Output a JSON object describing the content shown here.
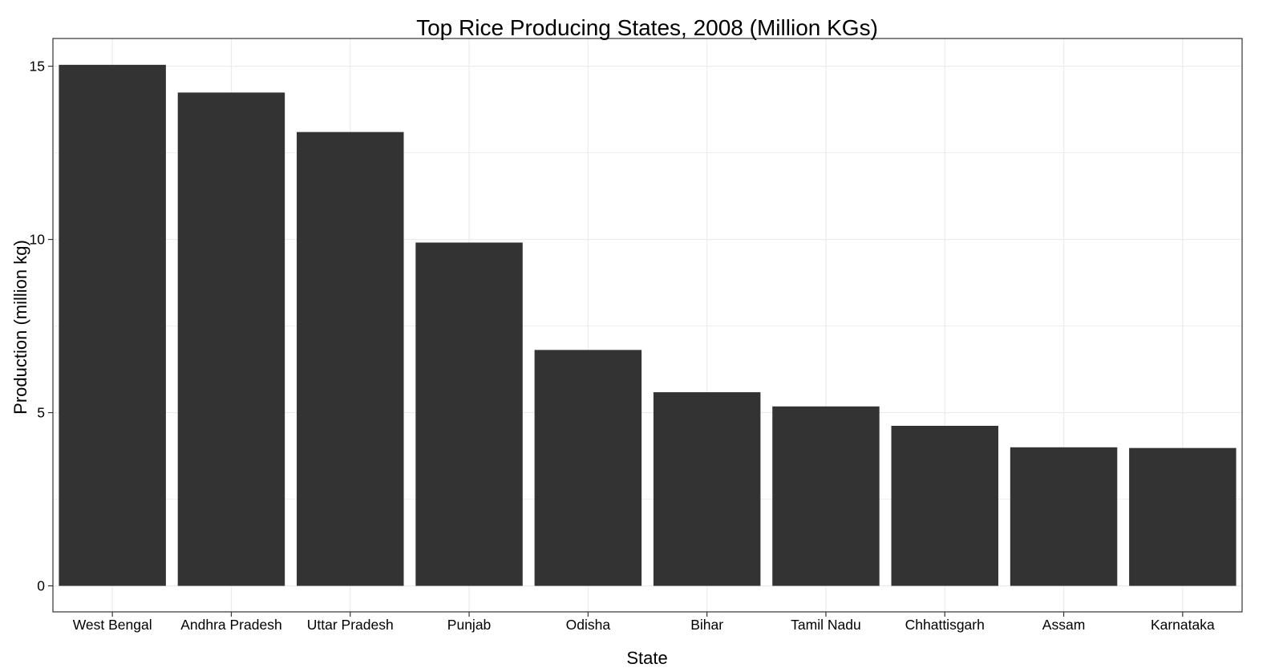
{
  "chart_data": {
    "type": "bar",
    "title": "Top Rice Producing States, 2008 (Million KGs)",
    "xlabel": "State",
    "ylabel": "Production (million kg)",
    "categories": [
      "West Bengal",
      "Andhra Pradesh",
      "Uttar Pradesh",
      "Punjab",
      "Odisha",
      "Bihar",
      "Tamil Nadu",
      "Chhattisgarh",
      "Assam",
      "Karnataka"
    ],
    "values": [
      15.04,
      14.24,
      13.1,
      9.91,
      6.81,
      5.59,
      5.18,
      4.62,
      4.0,
      3.98
    ],
    "ylim": [
      -0.75,
      15.8
    ],
    "y_ticks": [
      0,
      5,
      10,
      15
    ],
    "y_tick_labels": [
      "0",
      "5",
      "10",
      "15"
    ],
    "grid": true,
    "legend": "none",
    "colors": {
      "bar": "#333333",
      "grid": "#ebebeb",
      "border": "#333333",
      "background": "#ffffff"
    }
  }
}
